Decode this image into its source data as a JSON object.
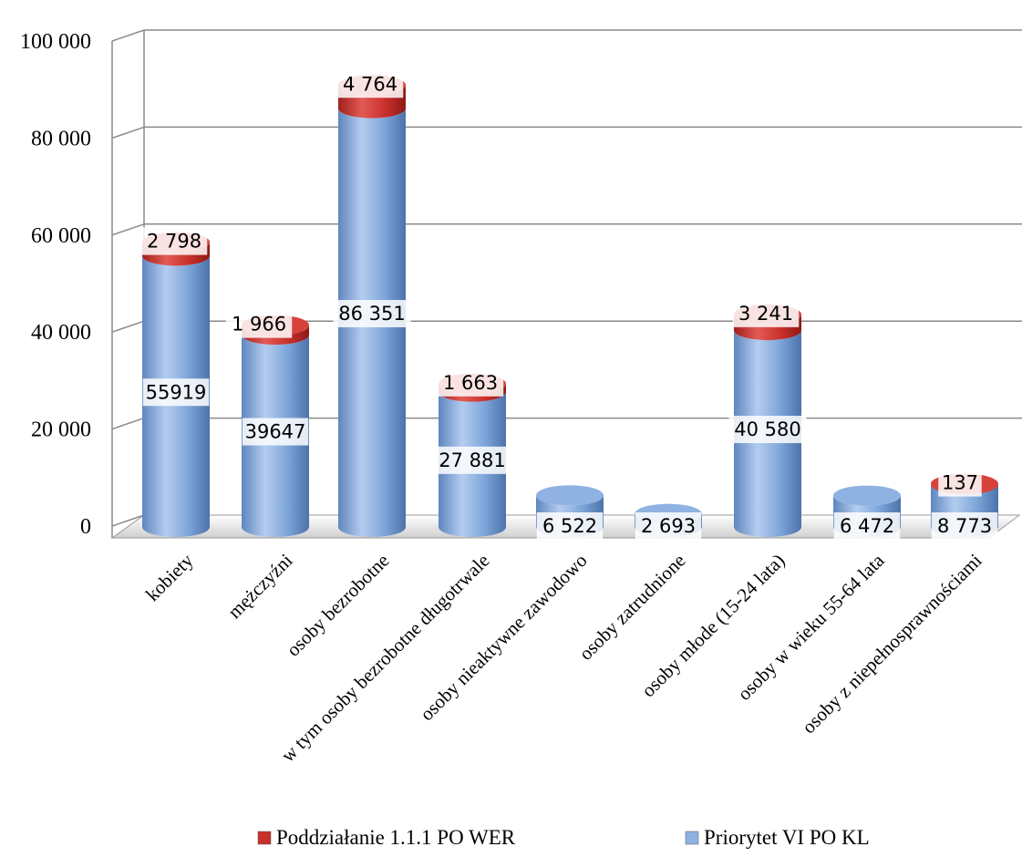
{
  "chart_data": {
    "type": "bar",
    "subtype": "stacked-3d-cylinder",
    "categories": [
      "kobiety",
      "mężczyźni",
      "osoby bezrobotne",
      "w tym osoby bezrobotne długotrwale",
      "osoby nieaktywne zawodowo",
      "osoby zatrudnione",
      "osoby młode (15-24 lata)",
      "osoby w wieku 55-64 lata",
      "osoby z niepełnosprawnościami"
    ],
    "series": [
      {
        "name": "Priorytet VI PO KL",
        "color": "#7ba3d8",
        "values": [
          55919,
          39647,
          86351,
          27881,
          6522,
          2693,
          40580,
          6472,
          8773
        ],
        "labels": [
          "55919",
          "39647",
          "86 351",
          "27 881",
          "6 522",
          "2 693",
          "40 580",
          "6 472",
          "8 773"
        ]
      },
      {
        "name": "Poddziałanie 1.1.1 PO WER",
        "color": "#c9302c",
        "values": [
          2798,
          1966,
          4764,
          1663,
          null,
          null,
          3241,
          null,
          137
        ],
        "labels": [
          "2 798",
          "1 966",
          "4 764",
          "1 663",
          "",
          "",
          "3 241",
          "",
          "137"
        ]
      }
    ],
    "y_ticks": [
      "0",
      "20 000",
      "40 000",
      "60 000",
      "80 000",
      "100 000"
    ],
    "ylim": [
      0,
      100000
    ],
    "grid": true,
    "legend_position": "bottom"
  }
}
